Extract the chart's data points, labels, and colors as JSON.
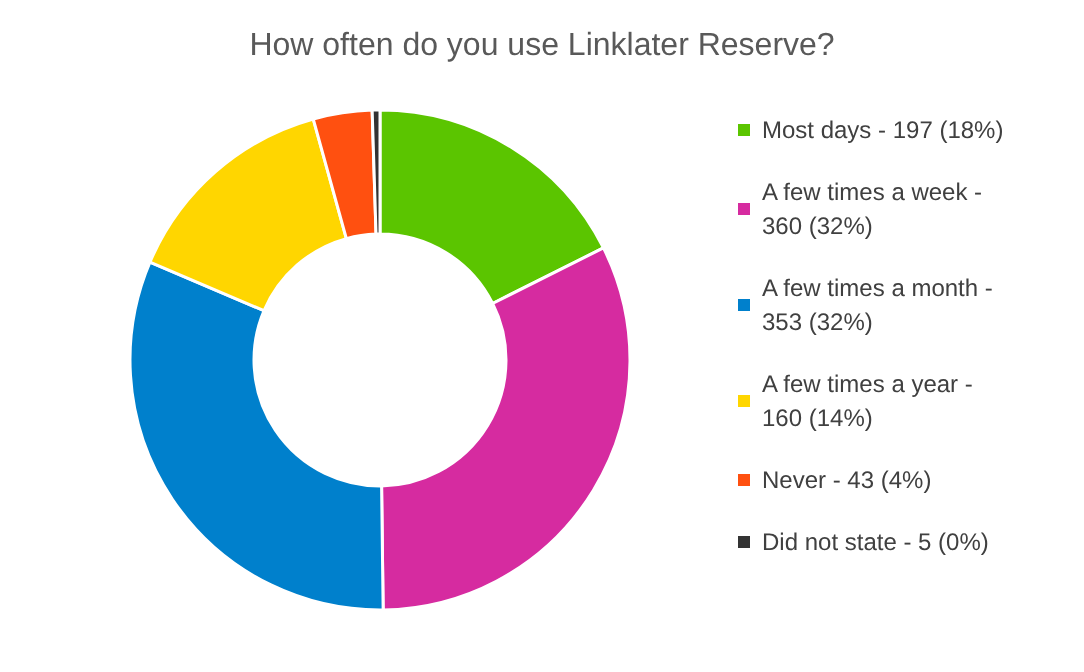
{
  "chart_data": {
    "type": "donut",
    "title": "How often do you use Linklater Reserve?",
    "categories": [
      "Most days - 197 (18%)",
      "A few times a week - 360 (32%)",
      "A few times a month - 353 (32%)",
      "A few times a year - 160 (14%)",
      "Never - 43 (4%)",
      "Did not state - 5 (0%)"
    ],
    "values": [
      17.6,
      32.2,
      31.6,
      14.3,
      3.8,
      0.5
    ],
    "colors": [
      "#5bc500",
      "#d62ba0",
      "#0080cc",
      "#ffd600",
      "#ff5010",
      "#333333"
    ],
    "legend": "right"
  }
}
